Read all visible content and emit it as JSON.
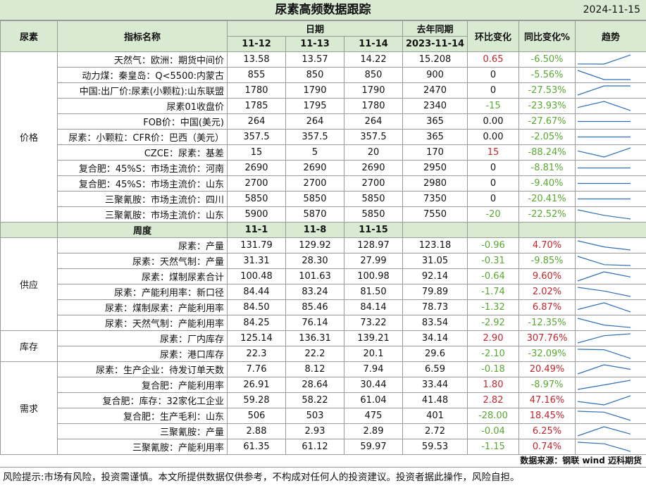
{
  "title": "尿素高频数据跟踪",
  "date": "2024-11-15",
  "headers": {
    "category": "尿素",
    "indicator": "指标名称",
    "date_group": "日期",
    "last_year": "去年同期",
    "mom": "环比变化",
    "yoy": "同比变化%",
    "trend": "趋势",
    "dates": [
      "11-12",
      "11-13",
      "11-14"
    ],
    "last_year_date": "2023-11-14"
  },
  "weekly_header": {
    "label": "周度",
    "dates": [
      "11-1",
      "11-8",
      "11-15"
    ]
  },
  "categories": {
    "price": "价格",
    "supply": "供应",
    "inventory": "库存",
    "demand": "需求"
  },
  "price_rows": [
    {
      "name": "天然气：欧洲：期货中间价",
      "v1": "13.58",
      "v2": "13.57",
      "v3": "14.22",
      "ly": "15.208",
      "mom": "0.65",
      "mom_sign": "pos",
      "yoy": "-6.50%",
      "yoy_sign": "neg"
    },
    {
      "name": "动力煤：秦皇岛：Q<5500:内蒙古",
      "v1": "855",
      "v2": "850",
      "v3": "850",
      "ly": "900",
      "mom": "0",
      "mom_sign": "zero",
      "yoy": "-5.56%",
      "yoy_sign": "neg"
    },
    {
      "name": "中国:出厂价:尿素(小颗粒):山东联盟",
      "v1": "1780",
      "v2": "1790",
      "v3": "1790",
      "ly": "2470",
      "mom": "0",
      "mom_sign": "zero",
      "yoy": "-27.53%",
      "yoy_sign": "neg"
    },
    {
      "name": "尿素01收盘价",
      "v1": "1785",
      "v2": "1795",
      "v3": "1780",
      "ly": "2340",
      "mom": "-15",
      "mom_sign": "neg",
      "yoy": "-23.93%",
      "yoy_sign": "neg"
    },
    {
      "name": "FOB价：中国(美元)",
      "v1": "264",
      "v2": "264",
      "v3": "264",
      "ly": "365",
      "mom": "0.00",
      "mom_sign": "zero",
      "yoy": "-27.67%",
      "yoy_sign": "neg"
    },
    {
      "name": "尿素：小颗粒：CFR价：巴西（美元）",
      "v1": "357.5",
      "v2": "357.5",
      "v3": "357.5",
      "ly": "365",
      "mom": "0.00",
      "mom_sign": "zero",
      "yoy": "-2.05%",
      "yoy_sign": "neg"
    },
    {
      "name": "CZCE：尿素：基差",
      "v1": "15",
      "v2": "5",
      "v3": "20",
      "ly": "170",
      "mom": "15",
      "mom_sign": "pos",
      "yoy": "-88.24%",
      "yoy_sign": "neg"
    },
    {
      "name": "复合肥：45%S：市场主流价：河南",
      "v1": "2690",
      "v2": "2690",
      "v3": "2690",
      "ly": "2950",
      "mom": "0",
      "mom_sign": "zero",
      "yoy": "-8.81%",
      "yoy_sign": "neg"
    },
    {
      "name": "复合肥：45%S：市场主流价：山东",
      "v1": "2700",
      "v2": "2700",
      "v3": "2700",
      "ly": "2980",
      "mom": "0",
      "mom_sign": "zero",
      "yoy": "-9.40%",
      "yoy_sign": "neg"
    },
    {
      "name": "三聚氰胺：市场主流价：四川",
      "v1": "5850",
      "v2": "5850",
      "v3": "5850",
      "ly": "7350",
      "mom": "0",
      "mom_sign": "zero",
      "yoy": "-20.41%",
      "yoy_sign": "neg"
    },
    {
      "name": "三聚氰胺：市场主流价：山东",
      "v1": "5900",
      "v2": "5870",
      "v3": "5850",
      "ly": "7550",
      "mom": "-20",
      "mom_sign": "neg",
      "yoy": "-22.52%",
      "yoy_sign": "neg"
    }
  ],
  "supply_rows": [
    {
      "name": "尿素：产量",
      "v1": "131.79",
      "v2": "129.92",
      "v3": "128.97",
      "ly": "123.18",
      "mom": "-0.96",
      "mom_sign": "neg",
      "yoy": "4.70%",
      "yoy_sign": "pos"
    },
    {
      "name": "尿素：天然气制：产量",
      "v1": "31.31",
      "v2": "28.30",
      "v3": "27.99",
      "ly": "31.05",
      "mom": "-0.31",
      "mom_sign": "neg",
      "yoy": "-9.85%",
      "yoy_sign": "neg"
    },
    {
      "name": "尿素：煤制尿素合计",
      "v1": "100.48",
      "v2": "101.63",
      "v3": "100.98",
      "ly": "92.14",
      "mom": "-0.64",
      "mom_sign": "neg",
      "yoy": "9.60%",
      "yoy_sign": "pos"
    },
    {
      "name": "尿素：产能利用率：新口径",
      "v1": "84.44",
      "v2": "83.24",
      "v3": "81.50",
      "ly": "79.89",
      "mom": "-1.74",
      "mom_sign": "neg",
      "yoy": "2.02%",
      "yoy_sign": "pos"
    },
    {
      "name": "尿素：煤制尿素：产能利用率",
      "v1": "84.50",
      "v2": "85.46",
      "v3": "84.14",
      "ly": "78.73",
      "mom": "-1.32",
      "mom_sign": "neg",
      "yoy": "6.87%",
      "yoy_sign": "pos"
    },
    {
      "name": "尿素：天然气制：产能利用率",
      "v1": "84.25",
      "v2": "76.14",
      "v3": "73.22",
      "ly": "83.54",
      "mom": "-2.92",
      "mom_sign": "neg",
      "yoy": "-12.35%",
      "yoy_sign": "neg"
    }
  ],
  "inventory_rows": [
    {
      "name": "尿素：厂内库存",
      "v1": "125.14",
      "v2": "136.31",
      "v3": "139.21",
      "ly": "34.14",
      "mom": "2.90",
      "mom_sign": "pos",
      "yoy": "307.76%",
      "yoy_sign": "pos"
    },
    {
      "name": "尿素：港口库存",
      "v1": "22.3",
      "v2": "22.2",
      "v3": "20.1",
      "ly": "29.6",
      "mom": "-2.10",
      "mom_sign": "neg",
      "yoy": "-32.09%",
      "yoy_sign": "neg"
    }
  ],
  "demand_rows": [
    {
      "name": "尿素：生产企业：待发订单天数",
      "v1": "7.76",
      "v2": "8.12",
      "v3": "7.94",
      "ly": "6.59",
      "mom": "-0.18",
      "mom_sign": "neg",
      "yoy": "20.49%",
      "yoy_sign": "pos"
    },
    {
      "name": "复合肥：产能利用率",
      "v1": "26.91",
      "v2": "28.64",
      "v3": "30.44",
      "ly": "33.44",
      "mom": "1.80",
      "mom_sign": "pos",
      "yoy": "-8.97%",
      "yoy_sign": "neg"
    },
    {
      "name": "复合肥：库存：32家化工企业",
      "v1": "59.28",
      "v2": "58.22",
      "v3": "61.04",
      "ly": "41.48",
      "mom": "2.82",
      "mom_sign": "pos",
      "yoy": "47.16%",
      "yoy_sign": "pos"
    },
    {
      "name": "复合肥：生产毛利：山东",
      "v1": "506",
      "v2": "503",
      "v3": "475",
      "ly": "401",
      "mom": "-28.00",
      "mom_sign": "neg",
      "yoy": "18.45%",
      "yoy_sign": "pos"
    },
    {
      "name": "三聚氰胺：产量",
      "v1": "2.88",
      "v2": "2.93",
      "v3": "2.89",
      "ly": "2.72",
      "mom": "-0.04",
      "mom_sign": "neg",
      "yoy": "6.25%",
      "yoy_sign": "pos"
    },
    {
      "name": "三聚氰胺：产能利用率",
      "v1": "61.35",
      "v2": "61.12",
      "v3": "59.97",
      "ly": "59.53",
      "mom": "-1.15",
      "mom_sign": "neg",
      "yoy": "0.74%",
      "yoy_sign": "pos"
    }
  ],
  "colors": {
    "header_bg": "#d9ead3",
    "positive": "#c0282d",
    "negative": "#5aa832",
    "sparkline": "#2e6fb6",
    "border": "#9a9a9a"
  },
  "source_text": "数据来源：钢联 wind 迈科期货",
  "risk_text": "风险提示:市场有风险，投资需谨慎。本文所提供数据仅供参考，不构成对任何人的投资建议。投资者据此操作，风险自担。"
}
